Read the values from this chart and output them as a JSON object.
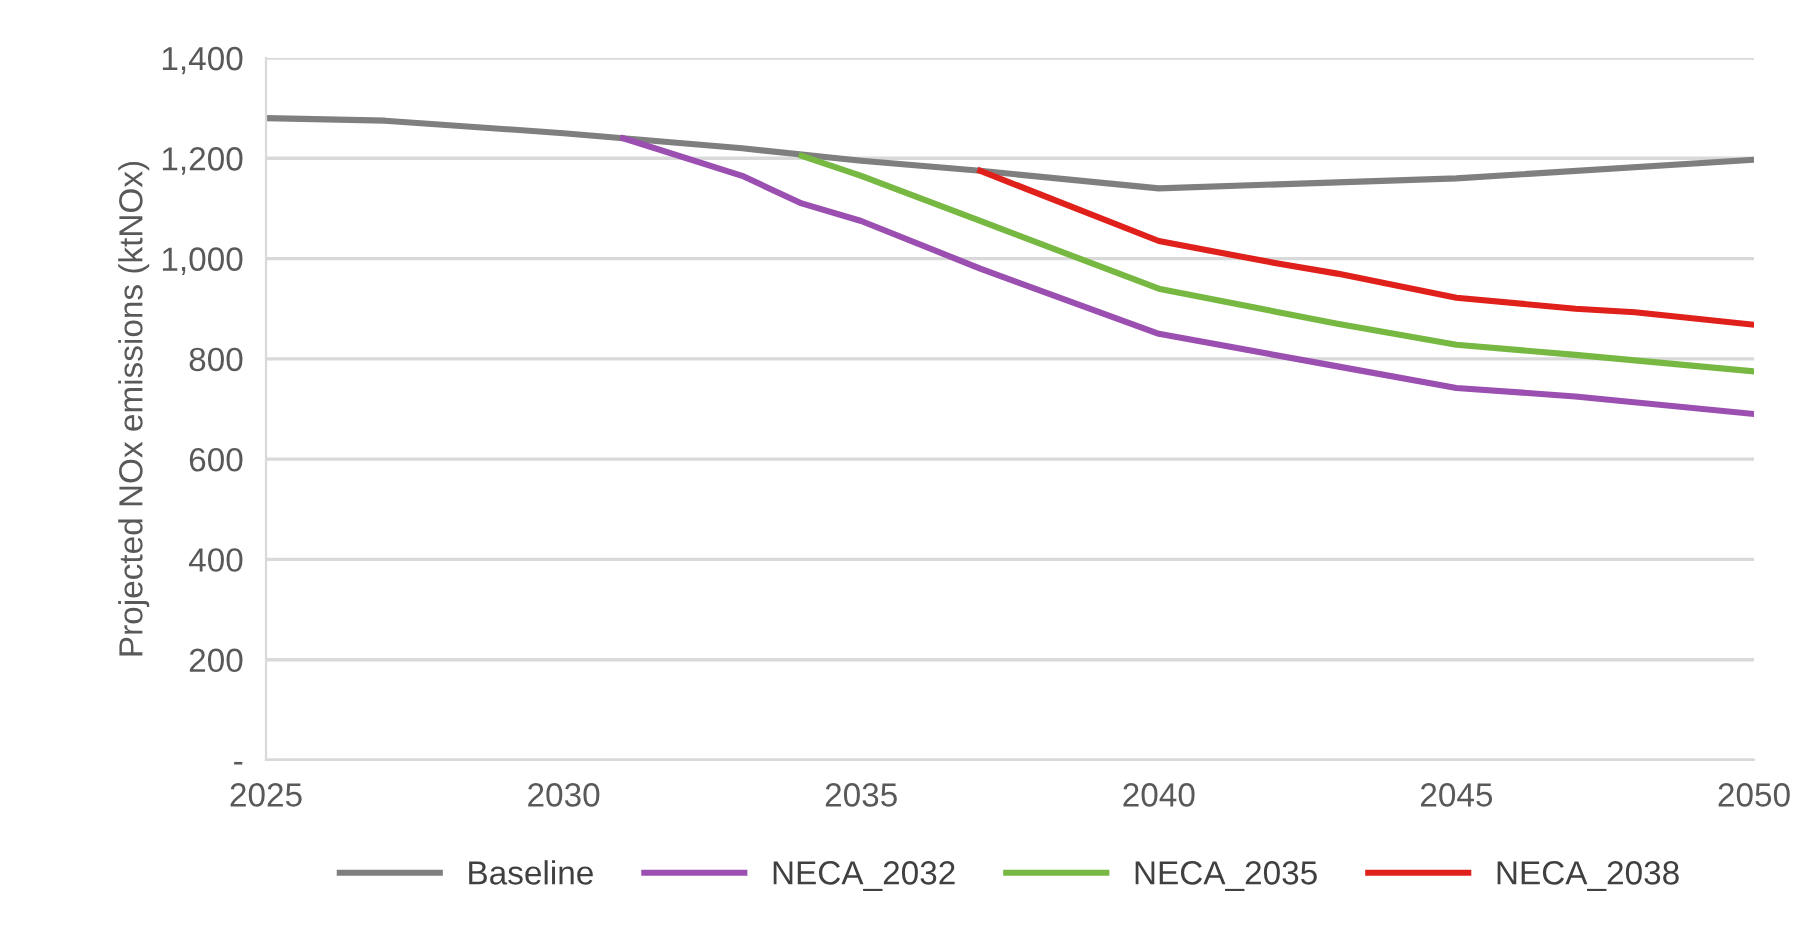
{
  "chart_data": {
    "type": "line",
    "ylabel": "Projected NOx emissions (ktNOx)",
    "xlim": [
      2025,
      2050
    ],
    "xticks": [
      2025,
      2030,
      2035,
      2040,
      2045,
      2050
    ],
    "ylim": [
      0,
      1400
    ],
    "yticks": [
      {
        "value": 0,
        "label": "-"
      },
      {
        "value": 200,
        "label": "200"
      },
      {
        "value": 400,
        "label": "400"
      },
      {
        "value": 600,
        "label": "600"
      },
      {
        "value": 800,
        "label": "800"
      },
      {
        "value": 1000,
        "label": "1,000"
      },
      {
        "value": 1200,
        "label": "1,200"
      },
      {
        "value": 1400,
        "label": "1,400"
      }
    ],
    "grid": "y",
    "legend": "bottom",
    "marker": "none",
    "line_style": "solid",
    "series": [
      {
        "name": "Baseline",
        "color": "#7f7f7f",
        "x": [
          2025,
          2027,
          2030,
          2031,
          2033,
          2035,
          2037,
          2040,
          2045,
          2050
        ],
        "values": [
          1280,
          1275,
          1250,
          1240,
          1220,
          1195,
          1175,
          1140,
          1160,
          1197
        ]
      },
      {
        "name": "NECA_2032",
        "color": "#9b4fb0",
        "x": [
          2031,
          2033,
          2034,
          2035,
          2037,
          2040,
          2043,
          2045,
          2047,
          2050
        ],
        "values": [
          1240,
          1165,
          1110,
          1075,
          980,
          850,
          785,
          742,
          725,
          690
        ]
      },
      {
        "name": "NECA_2035",
        "color": "#77b843",
        "x": [
          2034,
          2035,
          2037,
          2040,
          2043,
          2045,
          2047,
          2050
        ],
        "values": [
          1205,
          1165,
          1075,
          940,
          870,
          828,
          808,
          775
        ]
      },
      {
        "name": "NECA_2038",
        "color": "#e0201b",
        "x": [
          2037,
          2040,
          2042,
          2043,
          2045,
          2047,
          2048,
          2050
        ],
        "values": [
          1175,
          1035,
          990,
          970,
          922,
          900,
          893,
          868
        ]
      }
    ]
  }
}
